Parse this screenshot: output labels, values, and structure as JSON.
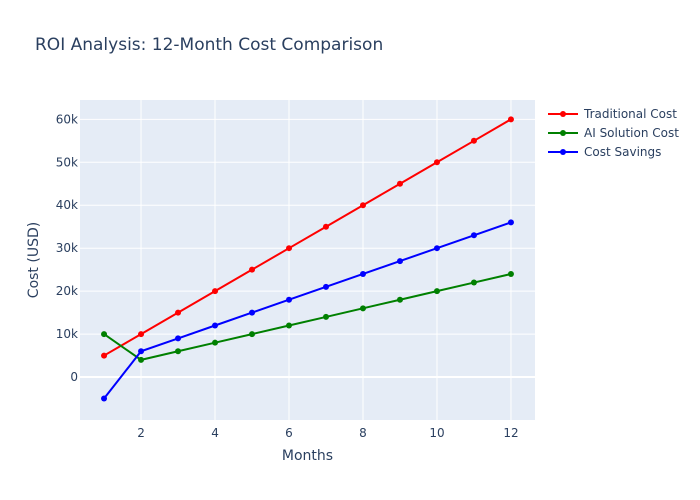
{
  "chart_data": {
    "type": "line",
    "title": "ROI Analysis: 12-Month Cost Comparison",
    "xlabel": "Months",
    "ylabel": "Cost (USD)",
    "x": [
      1,
      2,
      3,
      4,
      5,
      6,
      7,
      8,
      9,
      10,
      11,
      12
    ],
    "xlim": [
      0.35,
      12.65
    ],
    "ylim": [
      -10000,
      64500
    ],
    "x_ticks": [
      2,
      4,
      6,
      8,
      10,
      12
    ],
    "y_ticks": [
      0,
      10000,
      20000,
      30000,
      40000,
      50000,
      60000
    ],
    "y_tick_labels": [
      "0",
      "10k",
      "20k",
      "30k",
      "40k",
      "50k",
      "60k"
    ],
    "grid": true,
    "legend_position": "top-right",
    "series": [
      {
        "name": "Traditional Cost",
        "color": "#ff0000",
        "values": [
          5000,
          10000,
          15000,
          20000,
          25000,
          30000,
          35000,
          40000,
          45000,
          50000,
          55000,
          60000
        ]
      },
      {
        "name": "AI Solution Cost",
        "color": "#008000",
        "values": [
          10000,
          4000,
          6000,
          8000,
          10000,
          12000,
          14000,
          16000,
          18000,
          20000,
          22000,
          24000
        ]
      },
      {
        "name": "Cost Savings",
        "color": "#0000ff",
        "values": [
          -5000,
          6000,
          9000,
          12000,
          15000,
          18000,
          21000,
          24000,
          27000,
          30000,
          33000,
          36000
        ]
      }
    ]
  }
}
